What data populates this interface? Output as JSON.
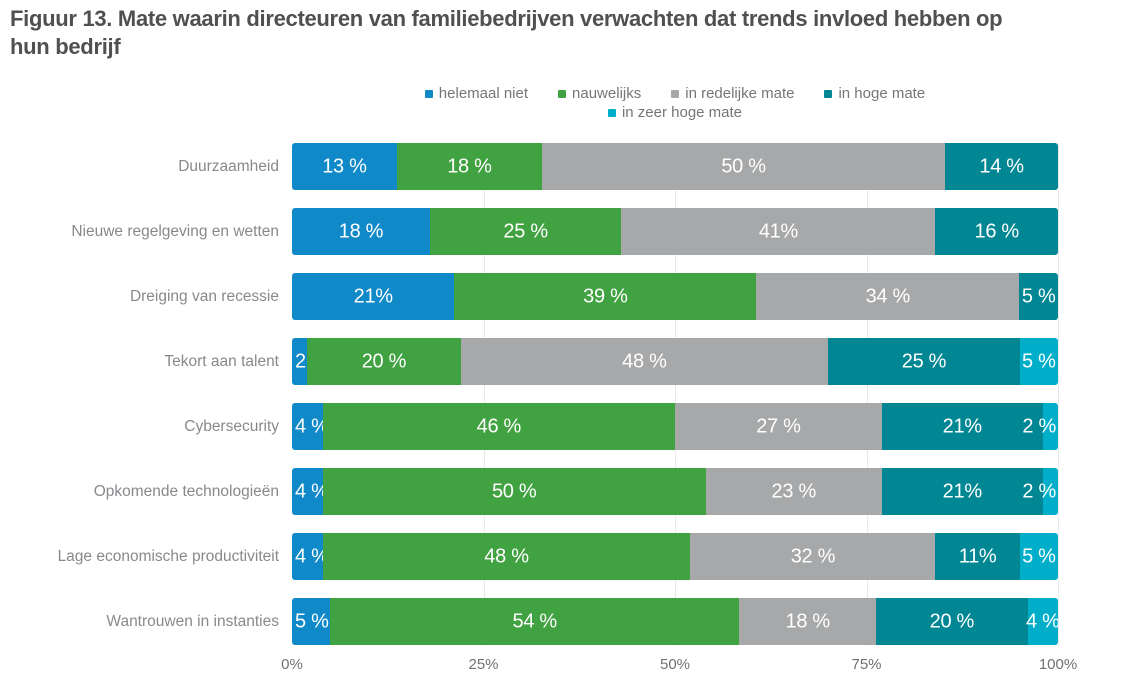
{
  "figure": {
    "title": "Figuur 13. Mate waarin directeuren van familiebedrijven verwachten dat trends invloed hebben op hun bedrijf"
  },
  "colors": {
    "series": {
      "helemaal niet": "#1089c9",
      "nauwelijks": "#41a241",
      "in redelijke mate": "#a7a8a9",
      "in hoge mate": "#008793",
      "in zeer hoge mate": "#00aeca"
    },
    "title_text": "#4f5052",
    "category_text": "#87898c",
    "axis_text": "#707175",
    "value_text": "#ffffff",
    "gridline": "#e9e9ea",
    "background": "#ffffff"
  },
  "chart_data": {
    "type": "bar",
    "orientation": "horizontal-stacked",
    "title": "Figuur 13. Mate waarin directeuren van familiebedrijven verwachten dat trends invloed hebben op hun bedrijf",
    "legend_position": "top",
    "legend_rows": [
      [
        "helemaal niet",
        "nauwelijks",
        "in redelijke mate",
        "in hoge mate"
      ],
      [
        "in zeer hoge mate"
      ]
    ],
    "x_ticks": [
      "0%",
      "25%",
      "50%",
      "75%",
      "100%"
    ],
    "x_tick_values": [
      0,
      25,
      50,
      75,
      100
    ],
    "xlim": [
      0,
      100
    ],
    "grid": "vertical-faint",
    "categories": [
      "Duurzaamheid",
      "Nieuwe regelgeving en wetten",
      "Dreiging van recessie",
      "Tekort aan talent",
      "Cybersecurity",
      "Opkomende technologieën",
      "Lage economische productiviteit",
      "Wantrouwen in instanties"
    ],
    "series": [
      {
        "name": "helemaal niet",
        "values": [
          13,
          18,
          21,
          2,
          4,
          4,
          4,
          5
        ],
        "value_labels": [
          "13 %",
          "18 %",
          "21%",
          "2 %",
          "4 %",
          "4 %",
          "4 %",
          "5 %"
        ]
      },
      {
        "name": "nauwelijks",
        "values": [
          18,
          25,
          39,
          20,
          46,
          50,
          48,
          54
        ],
        "value_labels": [
          "18 %",
          "25 %",
          "39 %",
          "20 %",
          "46 %",
          "50 %",
          "48 %",
          "54 %"
        ]
      },
      {
        "name": "in redelijke mate",
        "values": [
          50,
          41,
          34,
          48,
          27,
          23,
          32,
          18
        ],
        "value_labels": [
          "50 %",
          "41%",
          "34 %",
          "48 %",
          "27 %",
          "23 %",
          "32 %",
          "18 %"
        ]
      },
      {
        "name": "in hoge mate",
        "values": [
          14,
          16,
          5,
          25,
          21,
          21,
          11,
          20
        ],
        "value_labels": [
          "14 %",
          "16 %",
          "5 %",
          "25 %",
          "21%",
          "21%",
          "11%",
          "20 %"
        ]
      },
      {
        "name": "in zeer hoge mate",
        "values": [
          null,
          null,
          null,
          5,
          2,
          2,
          5,
          4
        ],
        "value_labels": [
          null,
          null,
          null,
          "5 %",
          "2 %",
          "2 %",
          "5 %",
          "4 %"
        ]
      }
    ]
  }
}
